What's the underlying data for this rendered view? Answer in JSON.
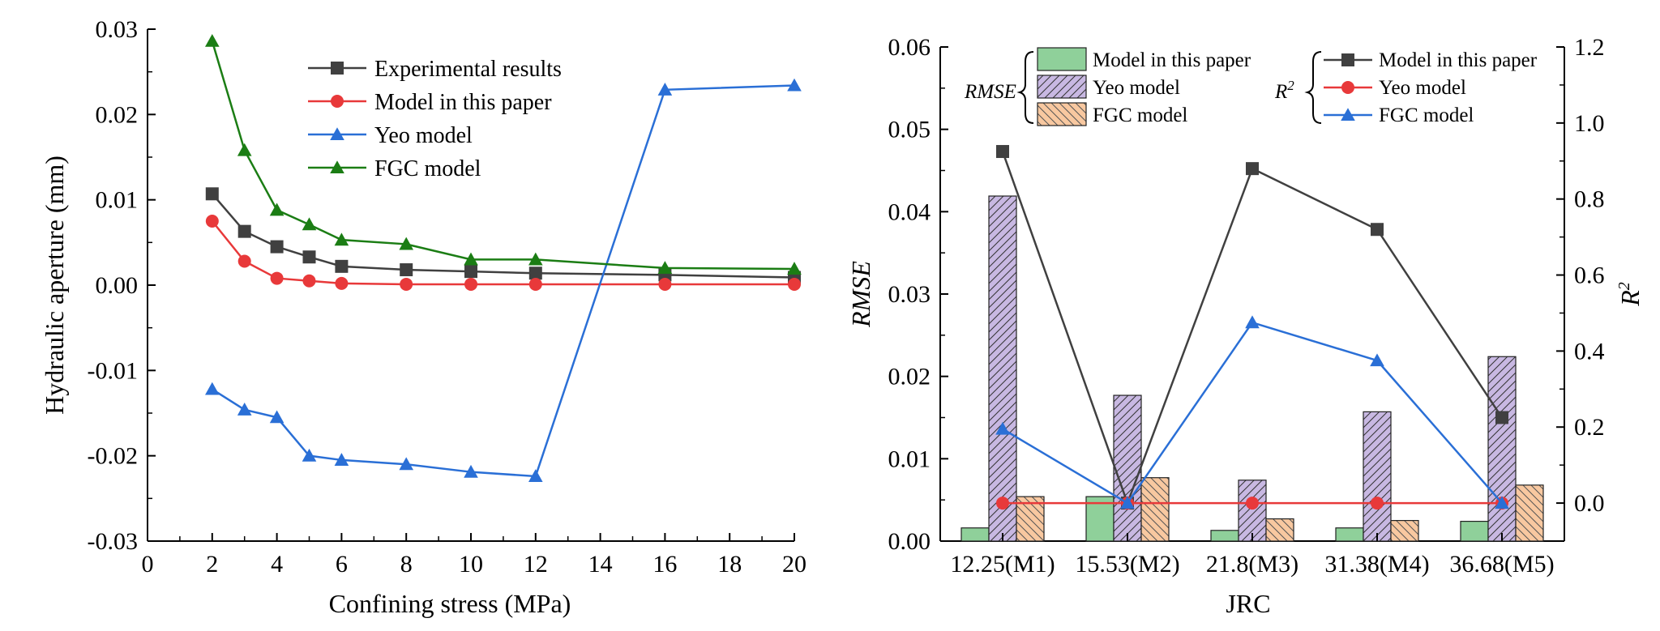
{
  "chart_data": [
    {
      "type": "line",
      "xlabel": "Confining stress (MPa)",
      "ylabel": "Hydraulic aperture (mm)",
      "xlim": [
        0,
        20
      ],
      "ylim": [
        -0.03,
        0.03
      ],
      "xticks": [
        0,
        2,
        4,
        6,
        8,
        10,
        12,
        14,
        16,
        18,
        20
      ],
      "yticks": [
        -0.03,
        -0.02,
        -0.01,
        0.0,
        0.01,
        0.02,
        0.03
      ],
      "xtick_labels": [
        "0",
        "2",
        "4",
        "6",
        "8",
        "10",
        "12",
        "14",
        "16",
        "18",
        "20"
      ],
      "ytick_labels": [
        "-0.03",
        "-0.02",
        "-0.01",
        "0.00",
        "0.01",
        "0.02",
        "0.03"
      ],
      "x": [
        2,
        3,
        4,
        5,
        6,
        8,
        10,
        12,
        16,
        20
      ],
      "series": [
        {
          "name": "Experimental results",
          "color": "#404040",
          "marker": "square",
          "values": [
            0.0107,
            0.0063,
            0.0045,
            0.0033,
            0.0022,
            0.0018,
            0.0016,
            0.0014,
            0.0012,
            0.0009
          ]
        },
        {
          "name": "Model in this paper",
          "color": "#e8393a",
          "marker": "circle",
          "values": [
            0.0075,
            0.0028,
            0.0008,
            0.0005,
            0.0002,
            0.0001,
            0.0001,
            0.0001,
            0.0001,
            0.0001
          ]
        },
        {
          "name": "Yeo model",
          "color": "#2a6fd6",
          "marker": "triangle",
          "values": [
            -0.0122,
            -0.0146,
            -0.0155,
            -0.02,
            -0.0205,
            -0.021,
            -0.0219,
            -0.0224,
            0.0229,
            0.0234
          ]
        },
        {
          "name": "FGC model",
          "color": "#1b7d14",
          "marker": "triangle",
          "values": [
            0.0286,
            0.0158,
            0.0088,
            0.0071,
            0.0053,
            0.0048,
            0.003,
            0.003,
            0.002,
            0.0019
          ]
        }
      ]
    },
    {
      "type": "bar",
      "xlabel": "JRC",
      "ylabel": "RMSE",
      "ylabel_right": "R",
      "ylabel_right_sup": "2",
      "categories": [
        "12.25(M1)",
        "15.53(M2)",
        "21.8(M3)",
        "31.38(M4)",
        "36.68(M5)"
      ],
      "ylim": [
        0,
        0.06
      ],
      "yticks": [
        0.0,
        0.01,
        0.02,
        0.03,
        0.04,
        0.05,
        0.06
      ],
      "ytick_labels": [
        "0.00",
        "0.01",
        "0.02",
        "0.03",
        "0.04",
        "0.05",
        "0.06"
      ],
      "ylim_right": [
        -0.1,
        1.2
      ],
      "yticks_right": [
        0.0,
        0.2,
        0.4,
        0.6,
        0.8,
        1.0,
        1.2
      ],
      "ytick_labels_right": [
        "0.0",
        "0.2",
        "0.4",
        "0.6",
        "0.8",
        "1.0",
        "1.2"
      ],
      "legend_group_left": "RMSE",
      "legend_group_right": "R",
      "legend_group_right_sup": "2",
      "bar_series": [
        {
          "name": "Model in this paper",
          "color": "#8fd09a",
          "pattern": "solid",
          "values": [
            0.0016,
            0.0054,
            0.0013,
            0.0016,
            0.0024
          ]
        },
        {
          "name": "Yeo model",
          "color": "#c8b8e2",
          "pattern": "hatch",
          "values": [
            0.0419,
            0.0177,
            0.0074,
            0.0157,
            0.0224
          ]
        },
        {
          "name": "FGC model",
          "color": "#f8c8a0",
          "pattern": "crosshatch",
          "values": [
            0.0054,
            0.0077,
            0.0027,
            0.0025,
            0.0068
          ]
        }
      ],
      "line_series": [
        {
          "name": "Model in this paper",
          "color": "#404040",
          "marker": "square",
          "values": [
            0.925,
            0.0,
            0.88,
            0.72,
            0.225
          ]
        },
        {
          "name": "Yeo model",
          "color": "#e8393a",
          "marker": "circle",
          "values": [
            0.0,
            0.0,
            0.0,
            0.0,
            0.0
          ]
        },
        {
          "name": "FGC model",
          "color": "#2a6fd6",
          "marker": "triangle",
          "values": [
            0.195,
            0.0,
            0.475,
            0.375,
            0.0
          ]
        }
      ]
    }
  ]
}
